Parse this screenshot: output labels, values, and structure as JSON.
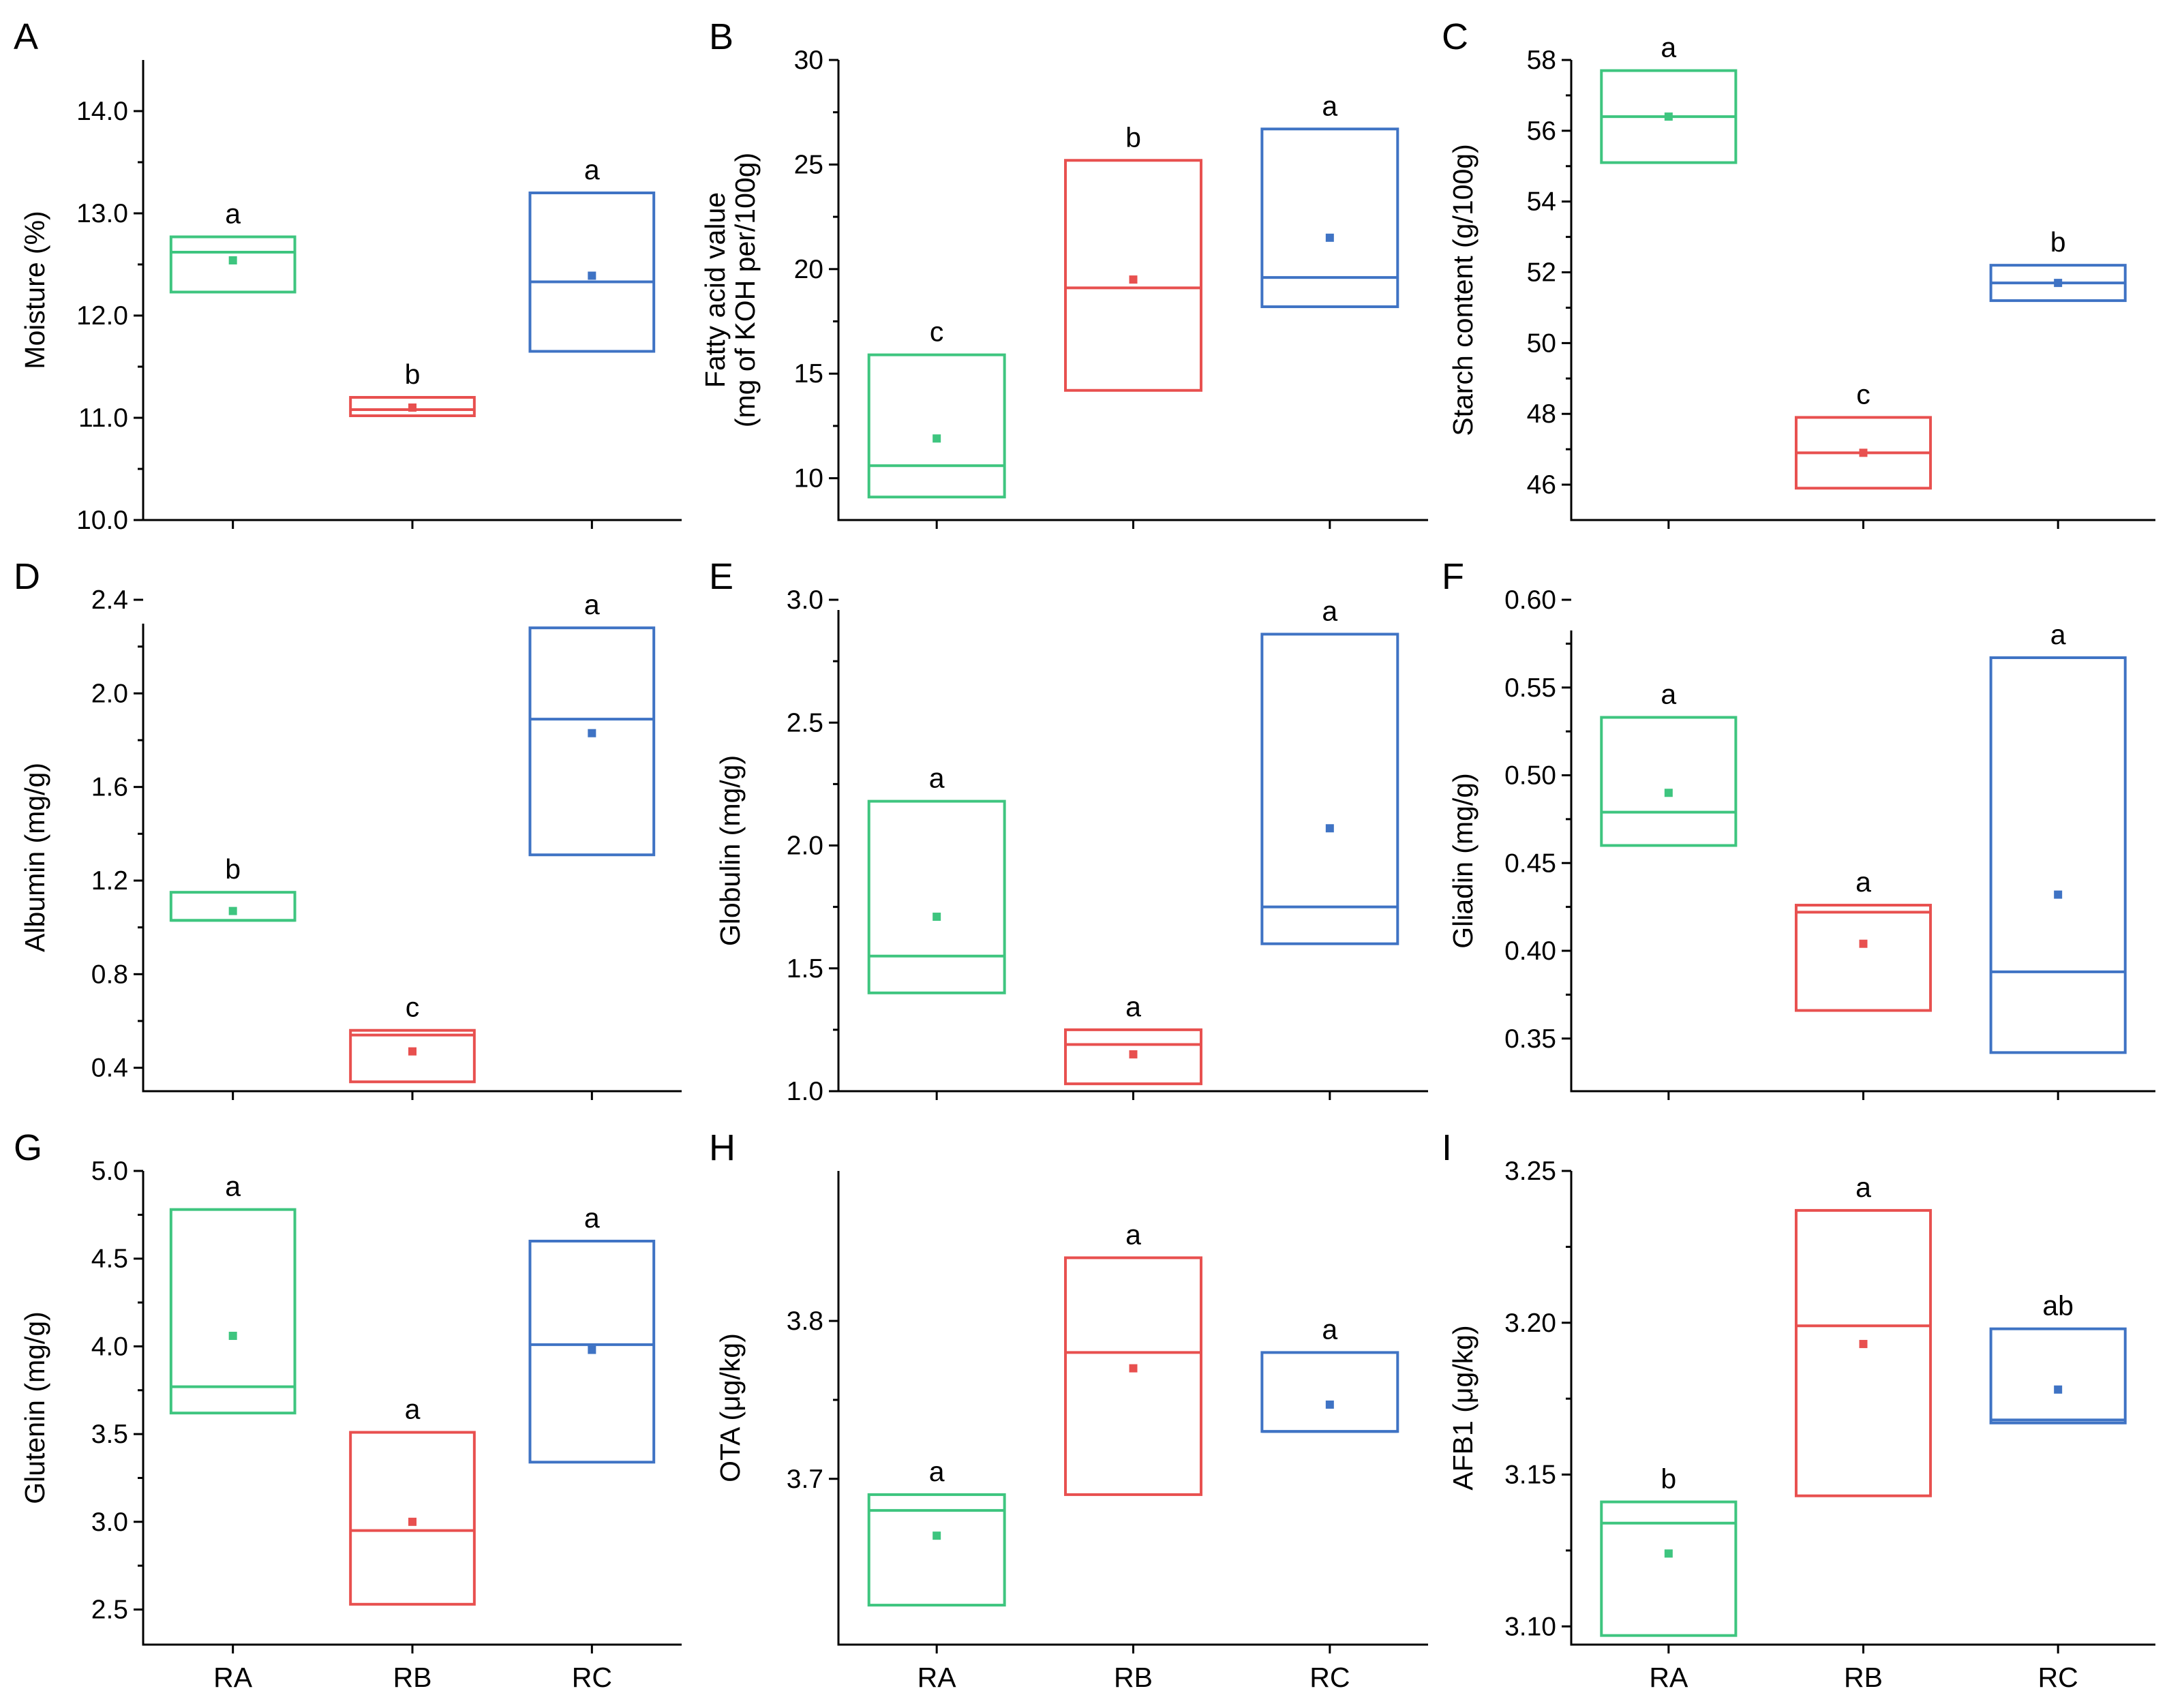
{
  "figure": {
    "categories": [
      "RA",
      "RB",
      "RC"
    ],
    "colors": {
      "RA": "#3ec57f",
      "RB": "#e8504f",
      "RC": "#3f73c4"
    }
  },
  "chart_data": [
    {
      "type": "box",
      "panel": "A",
      "ylabel": "Moisture (%)",
      "categories": [
        "RA",
        "RB",
        "RC"
      ],
      "ylim": [
        10.0,
        14.5
      ],
      "ticks": [
        10.0,
        11.0,
        12.0,
        13.0,
        14.0
      ],
      "tick_labels": [
        "10.0",
        "11.0",
        "12.0",
        "13.0",
        "14.0"
      ],
      "boxes": [
        {
          "low": 12.23,
          "high": 12.77,
          "median": 12.62,
          "mean": 12.54,
          "label": "a"
        },
        {
          "low": 11.02,
          "high": 11.2,
          "median": 11.08,
          "mean": 11.1,
          "label": "b"
        },
        {
          "low": 11.65,
          "high": 13.2,
          "median": 12.33,
          "mean": 12.39,
          "label": "a"
        }
      ]
    },
    {
      "type": "box",
      "panel": "B",
      "ylabel": "Fatty acid value",
      "ylabel2": "(mg of KOH per/100g)",
      "categories": [
        "RA",
        "RB",
        "RC"
      ],
      "ylim": [
        8.0,
        30.0
      ],
      "ticks": [
        10,
        15,
        20,
        25,
        30
      ],
      "tick_labels": [
        "10",
        "15",
        "20",
        "25",
        "30"
      ],
      "boxes": [
        {
          "low": 9.1,
          "high": 15.9,
          "median": 10.6,
          "mean": 11.9,
          "label": "c"
        },
        {
          "low": 14.2,
          "high": 25.2,
          "median": 19.1,
          "mean": 19.5,
          "label": "b"
        },
        {
          "low": 18.2,
          "high": 26.7,
          "median": 19.6,
          "mean": 21.5,
          "label": "a"
        }
      ]
    },
    {
      "type": "box",
      "panel": "C",
      "ylabel": "Starch content (g/100g)",
      "categories": [
        "RA",
        "RB",
        "RC"
      ],
      "ylim": [
        45.0,
        58.0
      ],
      "ticks": [
        46,
        48,
        50,
        52,
        54,
        56,
        58
      ],
      "tick_labels": [
        "46",
        "48",
        "50",
        "52",
        "54",
        "56",
        "58"
      ],
      "boxes": [
        {
          "low": 55.1,
          "high": 57.7,
          "median": 56.4,
          "mean": 56.4,
          "label": "a"
        },
        {
          "low": 45.9,
          "high": 47.9,
          "median": 46.9,
          "mean": 46.9,
          "label": "c"
        },
        {
          "low": 51.2,
          "high": 52.2,
          "median": 51.7,
          "mean": 51.7,
          "label": "b"
        }
      ]
    },
    {
      "type": "box",
      "panel": "D",
      "ylabel": "Albumin (mg/g)",
      "categories": [
        "RA",
        "RB",
        "RC"
      ],
      "ylim": [
        0.3,
        2.4
      ],
      "ticks": [
        0.4,
        0.8,
        1.2,
        1.6,
        2.0,
        2.4
      ],
      "tick_labels": [
        "0.4",
        "0.8",
        "1.2",
        "1.6",
        "2.0",
        "2.4"
      ],
      "boxes": [
        {
          "low": 1.03,
          "high": 1.15,
          "median": 1.03,
          "mean": 1.07,
          "label": "b"
        },
        {
          "low": 0.34,
          "high": 0.56,
          "median": 0.54,
          "mean": 0.47,
          "label": "c"
        },
        {
          "low": 1.31,
          "high": 2.28,
          "median": 1.89,
          "mean": 1.83,
          "label": "a"
        }
      ]
    },
    {
      "type": "box",
      "panel": "E",
      "ylabel": "Globulin (mg/g)",
      "categories": [
        "RA",
        "RB",
        "RC"
      ],
      "ylim": [
        1.0,
        3.0
      ],
      "ticks": [
        1.0,
        1.5,
        2.0,
        2.5,
        3.0
      ],
      "tick_labels": [
        "1.0",
        "1.5",
        "2.0",
        "2.5",
        "3.0"
      ],
      "boxes": [
        {
          "low": 1.4,
          "high": 2.18,
          "median": 1.55,
          "mean": 1.71,
          "label": "a"
        },
        {
          "low": 1.03,
          "high": 1.25,
          "median": 1.19,
          "mean": 1.15,
          "label": "a"
        },
        {
          "low": 1.6,
          "high": 2.86,
          "median": 1.75,
          "mean": 2.07,
          "label": "a"
        }
      ]
    },
    {
      "type": "box",
      "panel": "F",
      "ylabel": "Gliadin (mg/g)",
      "categories": [
        "RA",
        "RB",
        "RC"
      ],
      "ylim": [
        0.32,
        0.6
      ],
      "ticks": [
        0.35,
        0.4,
        0.45,
        0.5,
        0.55,
        0.6
      ],
      "tick_labels": [
        "0.35",
        "0.40",
        "0.45",
        "0.50",
        "0.55",
        "0.60"
      ],
      "boxes": [
        {
          "low": 0.46,
          "high": 0.533,
          "median": 0.479,
          "mean": 0.49,
          "label": "a"
        },
        {
          "low": 0.366,
          "high": 0.426,
          "median": 0.422,
          "mean": 0.404,
          "label": "a"
        },
        {
          "low": 0.342,
          "high": 0.567,
          "median": 0.388,
          "mean": 0.432,
          "label": "a"
        }
      ]
    },
    {
      "type": "box",
      "panel": "G",
      "ylabel": "Glutenin (mg/g)",
      "categories": [
        "RA",
        "RB",
        "RC"
      ],
      "ylim": [
        2.3,
        5.0
      ],
      "ticks": [
        2.5,
        3.0,
        3.5,
        4.0,
        4.5,
        5.0
      ],
      "tick_labels": [
        "2.5",
        "3.0",
        "3.5",
        "4.0",
        "4.5",
        "5.0"
      ],
      "boxes": [
        {
          "low": 3.62,
          "high": 4.78,
          "median": 3.77,
          "mean": 4.06,
          "label": "a"
        },
        {
          "low": 2.53,
          "high": 3.51,
          "median": 2.95,
          "mean": 3.0,
          "label": "a"
        },
        {
          "low": 3.34,
          "high": 4.6,
          "median": 4.01,
          "mean": 3.98,
          "label": "a"
        }
      ]
    },
    {
      "type": "box",
      "panel": "H",
      "ylabel": "OTA (μg/kg)",
      "categories": [
        "RA",
        "RB",
        "RC"
      ],
      "ylim": [
        3.595,
        3.895
      ],
      "ticks": [
        3.7,
        3.8
      ],
      "tick_labels": [
        "3.7",
        "3.8"
      ],
      "boxes": [
        {
          "low": 3.62,
          "high": 3.69,
          "median": 3.68,
          "mean": 3.664,
          "label": "a"
        },
        {
          "low": 3.69,
          "high": 3.84,
          "median": 3.78,
          "mean": 3.77,
          "label": "a"
        },
        {
          "low": 3.73,
          "high": 3.78,
          "median": 3.73,
          "mean": 3.747,
          "label": "a"
        }
      ]
    },
    {
      "type": "box",
      "panel": "I",
      "ylabel": "AFB1 (μg/kg)",
      "categories": [
        "RA",
        "RB",
        "RC"
      ],
      "ylim": [
        3.094,
        3.25
      ],
      "ticks": [
        3.1,
        3.15,
        3.2,
        3.25
      ],
      "tick_labels": [
        "3.10",
        "3.15",
        "3.20",
        "3.25"
      ],
      "boxes": [
        {
          "low": 3.097,
          "high": 3.141,
          "median": 3.134,
          "mean": 3.124,
          "label": "b"
        },
        {
          "low": 3.143,
          "high": 3.237,
          "median": 3.199,
          "mean": 3.193,
          "label": "a"
        },
        {
          "low": 3.167,
          "high": 3.198,
          "median": 3.168,
          "mean": 3.178,
          "label": "ab"
        }
      ]
    }
  ]
}
